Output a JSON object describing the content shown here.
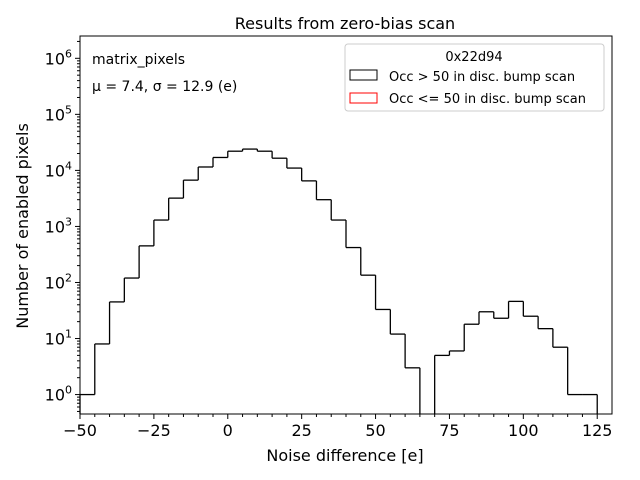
{
  "chart_data": {
    "type": "histogram",
    "title": "Results from zero-bias scan",
    "xlabel": "Noise difference [e]",
    "ylabel": "Number of enabled pixels",
    "xlim": [
      -50,
      130
    ],
    "ylim": [
      0.45,
      2500000
    ],
    "yscale": "log",
    "grid": false,
    "legend_position": "top-right",
    "legend_title": "0x22d94",
    "annotation_name": "matrix_pixels",
    "annotation_stats": "μ = 7.4, σ = 12.9 (e)",
    "x_ticks": [
      {
        "value": -50,
        "label": "−50"
      },
      {
        "value": -25,
        "label": "−25"
      },
      {
        "value": 0,
        "label": "0"
      },
      {
        "value": 25,
        "label": "25"
      },
      {
        "value": 50,
        "label": "50"
      },
      {
        "value": 75,
        "label": "75"
      },
      {
        "value": 100,
        "label": "100"
      },
      {
        "value": 125,
        "label": "125"
      }
    ],
    "y_ticks": [
      {
        "value": 1,
        "exp": "0"
      },
      {
        "value": 10,
        "exp": "1"
      },
      {
        "value": 100,
        "exp": "2"
      },
      {
        "value": 1000,
        "exp": "3"
      },
      {
        "value": 10000,
        "exp": "4"
      },
      {
        "value": 100000,
        "exp": "5"
      },
      {
        "value": 1000000,
        "exp": "6"
      }
    ],
    "bin_width": 5,
    "series": [
      {
        "name": "Occ > 50 in disc. bump scan",
        "color": "#000000",
        "bin_starts": [
          -50,
          -45,
          -40,
          -35,
          -30,
          -25,
          -20,
          -15,
          -10,
          -5,
          0,
          5,
          10,
          15,
          20,
          25,
          30,
          35,
          40,
          45,
          50,
          55,
          60,
          65,
          70,
          75,
          80,
          85,
          90,
          95,
          100,
          105,
          110,
          115,
          120
        ],
        "counts": [
          1,
          8,
          45,
          120,
          450,
          1300,
          3200,
          6700,
          11500,
          17000,
          22000,
          24000,
          22000,
          16500,
          11000,
          6500,
          3000,
          1300,
          420,
          135,
          33,
          12,
          3,
          0,
          5,
          6,
          18,
          30,
          23,
          46,
          25,
          15,
          7,
          1,
          1
        ]
      },
      {
        "name": "Occ <= 50 in disc. bump scan",
        "color": "#ff0000",
        "bin_starts": [],
        "counts": []
      }
    ]
  }
}
